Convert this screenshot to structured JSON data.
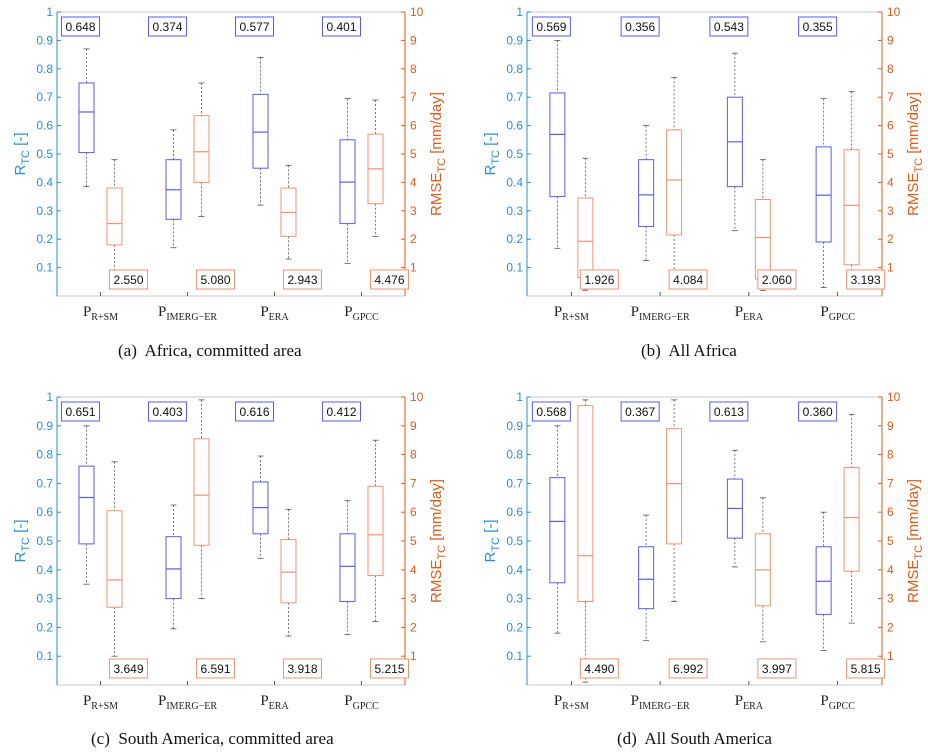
{
  "figure": {
    "subplot_labels": [
      "(a)",
      "(b)",
      "(c)",
      "(d)"
    ],
    "captions": [
      "Africa, committed area",
      "All Africa",
      "South America, committed area",
      "All South America"
    ]
  },
  "colors": {
    "r_axis": "#2a8fd4",
    "rmse_axis": "#e05a1c",
    "r_box": "#5b5bef",
    "rmse_box": "#f29272",
    "whisker": "#555555",
    "frame": "#bbbbbb"
  },
  "axes": {
    "left_label": "R",
    "left_sub": "TC",
    "left_unit": " [-]",
    "right_label": "RMSE",
    "right_sub": "TC",
    "right_unit": " [mm/day]",
    "left_ticks": [
      "0.1",
      "0.2",
      "0.3",
      "0.4",
      "0.5",
      "0.6",
      "0.7",
      "0.8",
      "0.9",
      "1"
    ],
    "right_ticks": [
      "1",
      "2",
      "3",
      "4",
      "5",
      "6",
      "7",
      "8",
      "9",
      "10"
    ],
    "categories": [
      {
        "main": "P",
        "sub": "R+SM"
      },
      {
        "main": "P",
        "sub": "IMERG−ER"
      },
      {
        "main": "P",
        "sub": "ERA"
      },
      {
        "main": "P",
        "sub": "GPCC"
      }
    ]
  },
  "chart_data": [
    {
      "type": "boxplot",
      "title": "Africa, committed area",
      "left_axis": {
        "label": "R_TC [-]",
        "ylim": [
          0,
          1
        ]
      },
      "right_axis": {
        "label": "RMSE_TC [mm/day]",
        "ylim": [
          0,
          10
        ]
      },
      "categories": [
        "P_R+SM",
        "P_IMERG-ER",
        "P_ERA",
        "P_GPCC"
      ],
      "r_boxes": [
        {
          "min": 0.385,
          "q1": 0.505,
          "median": 0.648,
          "q3": 0.75,
          "max": 0.87
        },
        {
          "min": 0.17,
          "q1": 0.27,
          "median": 0.374,
          "q3": 0.48,
          "max": 0.585
        },
        {
          "min": 0.32,
          "q1": 0.45,
          "median": 0.577,
          "q3": 0.71,
          "max": 0.84
        },
        {
          "min": 0.115,
          "q1": 0.255,
          "median": 0.401,
          "q3": 0.55,
          "max": 0.695
        }
      ],
      "rmse_boxes": [
        {
          "min": 0.8,
          "q1": 1.8,
          "median": 2.55,
          "q3": 3.8,
          "max": 4.8
        },
        {
          "min": 2.8,
          "q1": 4.0,
          "median": 5.08,
          "q3": 6.35,
          "max": 7.5
        },
        {
          "min": 1.3,
          "q1": 2.1,
          "median": 2.943,
          "q3": 3.8,
          "max": 4.6
        },
        {
          "min": 2.1,
          "q1": 3.25,
          "median": 4.476,
          "q3": 5.7,
          "max": 6.9
        }
      ],
      "r_medians": [
        "0.648",
        "0.374",
        "0.577",
        "0.401"
      ],
      "rmse_medians": [
        "2.550",
        "5.080",
        "2.943",
        "4.476"
      ]
    },
    {
      "type": "boxplot",
      "title": "All Africa",
      "left_axis": {
        "label": "R_TC [-]",
        "ylim": [
          0,
          1
        ]
      },
      "right_axis": {
        "label": "RMSE_TC [mm/day]",
        "ylim": [
          0,
          10
        ]
      },
      "categories": [
        "P_R+SM",
        "P_IMERG-ER",
        "P_ERA",
        "P_GPCC"
      ],
      "r_boxes": [
        {
          "min": 0.168,
          "q1": 0.35,
          "median": 0.569,
          "q3": 0.715,
          "max": 0.9
        },
        {
          "min": 0.125,
          "q1": 0.245,
          "median": 0.356,
          "q3": 0.48,
          "max": 0.6
        },
        {
          "min": 0.23,
          "q1": 0.385,
          "median": 0.543,
          "q3": 0.7,
          "max": 0.855
        },
        {
          "min": 0.03,
          "q1": 0.19,
          "median": 0.355,
          "q3": 0.525,
          "max": 0.695
        }
      ],
      "rmse_boxes": [
        {
          "min": 0.2,
          "q1": 0.65,
          "median": 1.926,
          "q3": 3.45,
          "max": 4.85
        },
        {
          "min": 0.35,
          "q1": 2.15,
          "median": 4.084,
          "q3": 5.85,
          "max": 7.7
        },
        {
          "min": 0.2,
          "q1": 0.6,
          "median": 2.06,
          "q3": 3.4,
          "max": 4.8
        },
        {
          "min": 0.25,
          "q1": 1.1,
          "median": 3.193,
          "q3": 5.15,
          "max": 7.2
        }
      ],
      "r_medians": [
        "0.569",
        "0.356",
        "0.543",
        "0.355"
      ],
      "rmse_medians": [
        "1.926",
        "4.084",
        "2.060",
        "3.193"
      ]
    },
    {
      "type": "boxplot",
      "title": "South America, committed area",
      "left_axis": {
        "label": "R_TC [-]",
        "ylim": [
          0,
          1
        ]
      },
      "right_axis": {
        "label": "RMSE_TC [mm/day]",
        "ylim": [
          0,
          10
        ]
      },
      "categories": [
        "P_R+SM",
        "P_IMERG-ER",
        "P_ERA",
        "P_GPCC"
      ],
      "r_boxes": [
        {
          "min": 0.35,
          "q1": 0.49,
          "median": 0.651,
          "q3": 0.76,
          "max": 0.9
        },
        {
          "min": 0.195,
          "q1": 0.3,
          "median": 0.403,
          "q3": 0.515,
          "max": 0.625
        },
        {
          "min": 0.44,
          "q1": 0.525,
          "median": 0.616,
          "q3": 0.705,
          "max": 0.795
        },
        {
          "min": 0.175,
          "q1": 0.29,
          "median": 0.412,
          "q3": 0.525,
          "max": 0.64
        }
      ],
      "rmse_boxes": [
        {
          "min": 1.0,
          "q1": 2.7,
          "median": 3.649,
          "q3": 6.05,
          "max": 7.75
        },
        {
          "min": 3.0,
          "q1": 4.85,
          "median": 6.591,
          "q3": 8.55,
          "max": 9.9
        },
        {
          "min": 1.7,
          "q1": 2.85,
          "median": 3.918,
          "q3": 5.05,
          "max": 6.1
        },
        {
          "min": 2.2,
          "q1": 3.8,
          "median": 5.215,
          "q3": 6.9,
          "max": 8.5
        }
      ],
      "r_medians": [
        "0.651",
        "0.403",
        "0.616",
        "0.412"
      ],
      "rmse_medians": [
        "3.649",
        "6.591",
        "3.918",
        "5.215"
      ]
    },
    {
      "type": "boxplot",
      "title": "All South America",
      "left_axis": {
        "label": "R_TC [-]",
        "ylim": [
          0,
          1
        ]
      },
      "right_axis": {
        "label": "RMSE_TC [mm/day]",
        "ylim": [
          0,
          10
        ]
      },
      "categories": [
        "P_R+SM",
        "P_IMERG-ER",
        "P_ERA",
        "P_GPCC"
      ],
      "r_boxes": [
        {
          "min": 0.18,
          "q1": 0.355,
          "median": 0.568,
          "q3": 0.72,
          "max": 0.9
        },
        {
          "min": 0.155,
          "q1": 0.265,
          "median": 0.367,
          "q3": 0.48,
          "max": 0.59
        },
        {
          "min": 0.41,
          "q1": 0.51,
          "median": 0.613,
          "q3": 0.715,
          "max": 0.815
        },
        {
          "min": 0.12,
          "q1": 0.245,
          "median": 0.36,
          "q3": 0.48,
          "max": 0.6
        }
      ],
      "rmse_boxes": [
        {
          "min": 0.1,
          "q1": 2.9,
          "median": 4.49,
          "q3": 9.7,
          "max": 9.9
        },
        {
          "min": 2.9,
          "q1": 4.9,
          "median": 6.992,
          "q3": 8.9,
          "max": 9.9
        },
        {
          "min": 1.5,
          "q1": 2.75,
          "median": 3.997,
          "q3": 5.25,
          "max": 6.5
        },
        {
          "min": 2.15,
          "q1": 3.95,
          "median": 5.815,
          "q3": 7.55,
          "max": 9.4
        }
      ],
      "r_medians": [
        "0.568",
        "0.367",
        "0.613",
        "0.360"
      ],
      "rmse_medians": [
        "4.490",
        "6.992",
        "3.997",
        "5.815"
      ]
    }
  ]
}
